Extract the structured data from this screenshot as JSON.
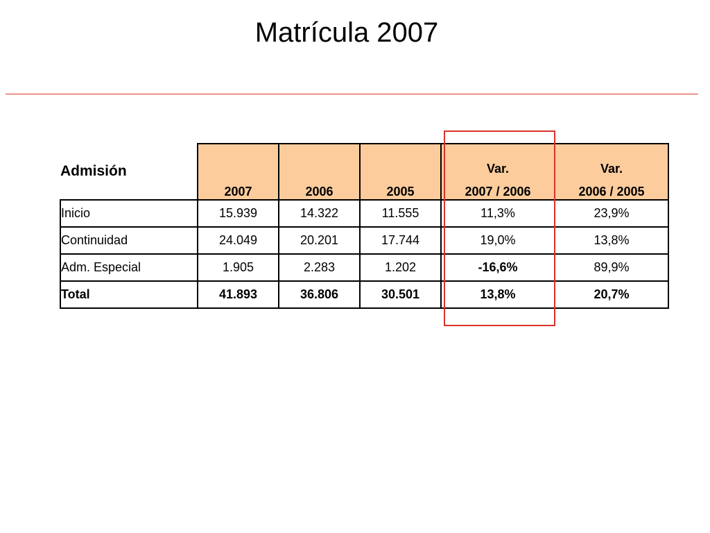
{
  "slide": {
    "title": "Matrícula 2007",
    "accent_color": "#d9322b",
    "header_fill": "#fccc9c"
  },
  "table": {
    "row_header": "Admisión",
    "columns": [
      {
        "line1": "",
        "line2": "2007"
      },
      {
        "line1": "",
        "line2": "2006"
      },
      {
        "line1": "",
        "line2": "2005"
      },
      {
        "line1": "Var.",
        "line2": "2007 / 2006"
      },
      {
        "line1": "Var.",
        "line2": "2006 / 2005"
      }
    ],
    "rows": [
      {
        "label": "Inicio",
        "values": [
          "15.939",
          "14.322",
          "11.555",
          "11,3%",
          "23,9%"
        ]
      },
      {
        "label": "Continuidad",
        "values": [
          "24.049",
          "20.201",
          "17.744",
          "19,0%",
          "13,8%"
        ]
      },
      {
        "label": "Adm. Especial",
        "values": [
          "1.905",
          "2.283",
          "1.202",
          "-16,6%",
          "89,9%"
        ]
      },
      {
        "label": "Total",
        "values": [
          "41.893",
          "36.806",
          "30.501",
          "13,8%",
          "20,7%"
        ]
      }
    ]
  }
}
